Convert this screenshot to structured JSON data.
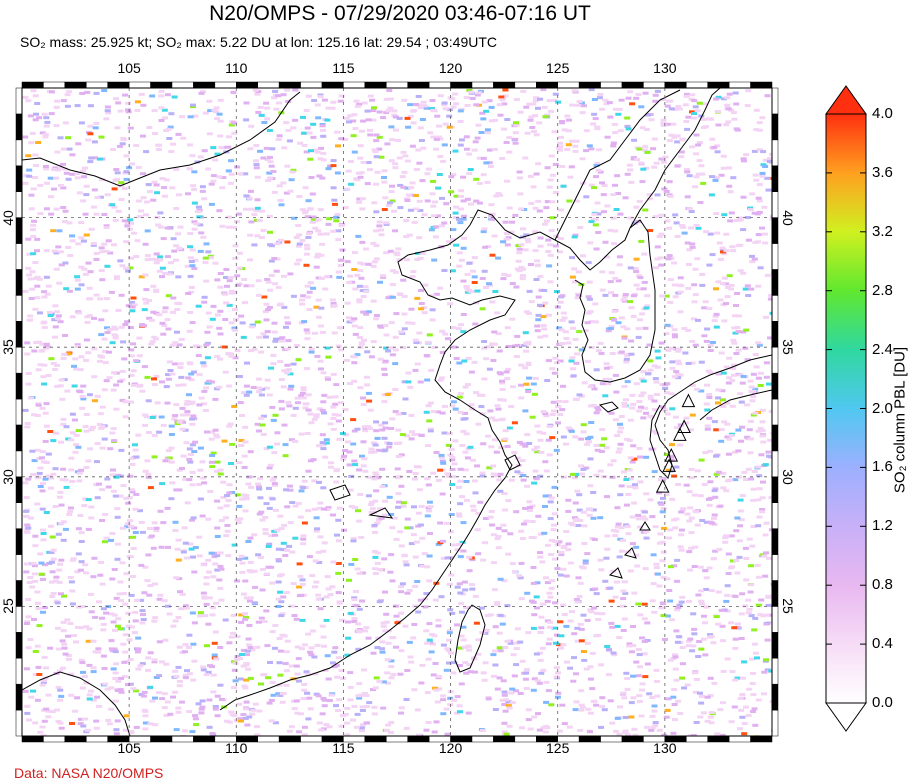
{
  "title": "N20/OMPS - 07/29/2020 03:46-07:16 UT",
  "subtitle": "SO₂ mass: 25.925 kt; SO₂ max: 5.22 DU at lon: 125.16 lat: 29.54 ; 03:49UTC",
  "credit": "Data: NASA N20/OMPS",
  "map": {
    "lon_range": [
      100,
      135
    ],
    "lat_range": [
      20,
      45
    ],
    "lon_ticks": [
      {
        "value": 105,
        "label": "105"
      },
      {
        "value": 110,
        "label": "110"
      },
      {
        "value": 115,
        "label": "115"
      },
      {
        "value": 120,
        "label": "120"
      },
      {
        "value": 125,
        "label": "125"
      },
      {
        "value": 130,
        "label": "130"
      }
    ],
    "lat_ticks": [
      {
        "value": 40,
        "label": "40"
      },
      {
        "value": 35,
        "label": "35"
      },
      {
        "value": 30,
        "label": "30"
      },
      {
        "value": 25,
        "label": "25"
      }
    ],
    "volcanoes": [
      {
        "lon": 131.1,
        "lat": 32.9
      },
      {
        "lon": 130.9,
        "lat": 31.9
      },
      {
        "lon": 130.7,
        "lat": 31.6
      },
      {
        "lon": 130.3,
        "lat": 30.8
      },
      {
        "lon": 130.2,
        "lat": 30.4
      },
      {
        "lon": 129.9,
        "lat": 29.6
      }
    ]
  },
  "colorbar": {
    "label": "SO₂ column PBL [DU]",
    "min": 0.0,
    "max": 4.0,
    "ticks": [
      "0.0",
      "0.4",
      "0.8",
      "1.2",
      "1.6",
      "2.0",
      "2.4",
      "2.8",
      "3.2",
      "3.6",
      "4.0"
    ],
    "colors": [
      "#ffffff",
      "#f4d4f4",
      "#e0b0f0",
      "#b8b0f8",
      "#80b8ff",
      "#40d8e8",
      "#30e070",
      "#90f020",
      "#e8f020",
      "#ffb020",
      "#ff5010",
      "#e00000"
    ]
  }
}
